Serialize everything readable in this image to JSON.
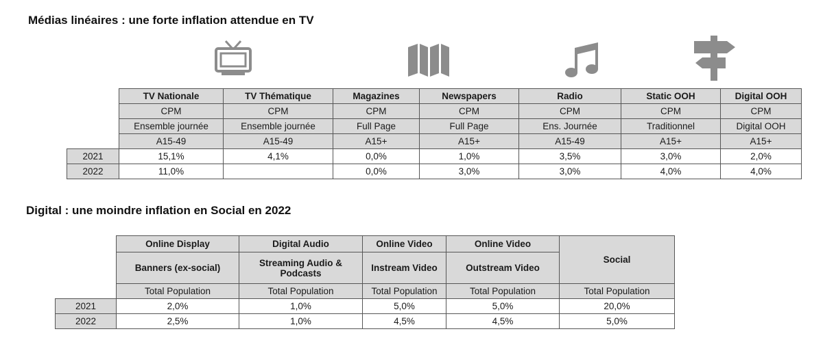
{
  "linear_section": {
    "title": "Médias linéaires : une forte inflation attendue en TV",
    "icons": [
      "tv-icon",
      "map-icon",
      "music-note-icon",
      "signpost-icon"
    ],
    "columns": [
      {
        "media": "TV Nationale",
        "metric": "CPM",
        "format": "Ensemble journée",
        "target": "A15-49",
        "v2021": "15,1%",
        "v2022": "11,0%"
      },
      {
        "media": "TV Thématique",
        "metric": "CPM",
        "format": "Ensemble journée",
        "target": "A15-49",
        "v2021": "4,1%",
        "v2022": ""
      },
      {
        "media": "Magazines",
        "metric": "CPM",
        "format": "Full Page",
        "target": "A15+",
        "v2021": "0,0%",
        "v2022": "0,0%"
      },
      {
        "media": "Newspapers",
        "metric": "CPM",
        "format": "Full Page",
        "target": "A15+",
        "v2021": "1,0%",
        "v2022": "3,0%"
      },
      {
        "media": "Radio",
        "metric": "CPM",
        "format": "Ens. Journée",
        "target": "A15-49",
        "v2021": "3,5%",
        "v2022": "3,0%"
      },
      {
        "media": "Static OOH",
        "metric": "CPM",
        "format": "Traditionnel",
        "target": "A15+",
        "v2021": "3,0%",
        "v2022": "4,0%"
      },
      {
        "media": "Digital OOH",
        "metric": "CPM",
        "format": "Digital OOH",
        "target": "A15+",
        "v2021": "2,0%",
        "v2022": "4,0%"
      }
    ],
    "years": [
      "2021",
      "2022"
    ]
  },
  "digital_section": {
    "title": "Digital : une moindre inflation en Social en 2022",
    "columns": [
      {
        "category": "Online Display",
        "format": "Banners (ex-social)",
        "target": "Total Population",
        "v2021": "2,0%",
        "v2022": "2,5%"
      },
      {
        "category": "Digital Audio",
        "format": "Streaming Audio & Podcasts",
        "target": "Total Population",
        "v2021": "1,0%",
        "v2022": "1,0%"
      },
      {
        "category": "Online Video",
        "format": "Instream Video",
        "target": "Total Population",
        "v2021": "5,0%",
        "v2022": "4,5%"
      },
      {
        "category": "Online Video",
        "format": "Outstream Video",
        "target": "Total Population",
        "v2021": "5,0%",
        "v2022": "4,5%"
      }
    ],
    "social": {
      "label": "Social",
      "target": "Total Population",
      "v2021": "20,0%",
      "v2022": "5,0%"
    },
    "years": [
      "2021",
      "2022"
    ]
  }
}
